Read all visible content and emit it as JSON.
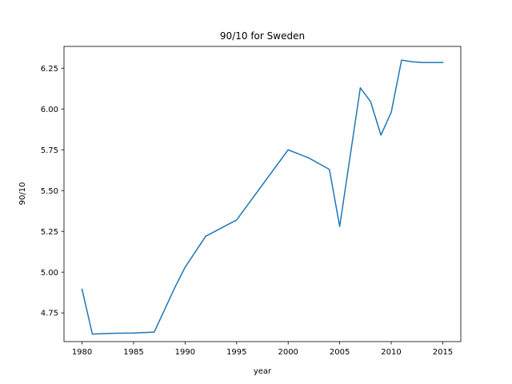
{
  "chart_data": {
    "type": "line",
    "title": "90/10 for Sweden",
    "xlabel": "year",
    "ylabel": "90/10",
    "xlim": [
      1978.25,
      2016.75
    ],
    "ylim": [
      4.574,
      6.384
    ],
    "xticks": [
      1980,
      1985,
      1990,
      1995,
      2000,
      2005,
      2010,
      2015
    ],
    "xtick_labels": [
      "1980",
      "1985",
      "1990",
      "1995",
      "2000",
      "2005",
      "2010",
      "2015"
    ],
    "yticks": [
      4.75,
      5.0,
      5.25,
      5.5,
      5.75,
      6.0,
      6.25
    ],
    "ytick_labels": [
      "4.75",
      "5.00",
      "5.25",
      "5.50",
      "5.75",
      "6.00",
      "6.25"
    ],
    "grid": false,
    "series": [
      {
        "color": "#1f77b4",
        "x": [
          1980,
          1981,
          1983,
          1985,
          1987,
          1989,
          1990,
          1992,
          1995,
          2000,
          2002,
          2004,
          2005,
          2007,
          2008,
          2009,
          2010,
          2011,
          2012,
          2013,
          2014,
          2015
        ],
        "y": [
          4.895,
          4.62,
          4.625,
          4.627,
          4.632,
          4.905,
          5.03,
          5.22,
          5.32,
          5.75,
          5.7,
          5.63,
          5.28,
          6.13,
          6.045,
          5.84,
          5.98,
          6.3,
          6.29,
          6.285,
          6.285,
          6.285
        ]
      }
    ]
  }
}
